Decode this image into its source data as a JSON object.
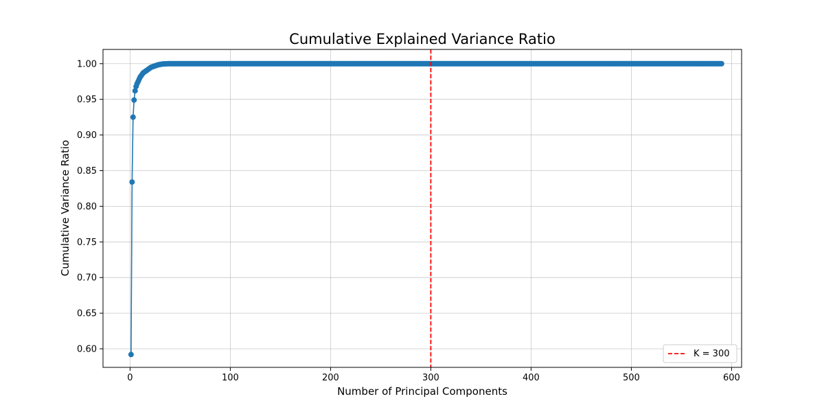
{
  "chart_data": {
    "type": "line",
    "title": "Cumulative Explained Variance Ratio",
    "xlabel": "Number of Principal Components",
    "ylabel": "Cumulative Variance Ratio",
    "xlim": [
      -27,
      610
    ],
    "ylim": [
      0.574,
      1.02
    ],
    "x_ticks": [
      0,
      100,
      200,
      300,
      400,
      500,
      600
    ],
    "x_tick_labels": [
      "0",
      "100",
      "200",
      "300",
      "400",
      "500",
      "600"
    ],
    "y_ticks": [
      0.6,
      0.65,
      0.7,
      0.75,
      0.8,
      0.85,
      0.9,
      0.95,
      1.0
    ],
    "y_tick_labels": [
      "0.60",
      "0.65",
      "0.70",
      "0.75",
      "0.80",
      "0.85",
      "0.90",
      "0.95",
      "1.00"
    ],
    "grid": true,
    "series": [
      {
        "color": "#1f77b4",
        "marker": "circle",
        "x_start": 1,
        "x_end": 590,
        "leading_values": [
          0.592,
          0.834,
          0.925,
          0.949,
          0.962,
          0.968,
          0.972,
          0.975,
          0.978,
          0.981,
          0.983,
          0.985,
          0.987,
          0.988,
          0.989,
          0.99,
          0.991,
          0.992,
          0.993,
          0.994,
          0.995,
          0.9955,
          0.996,
          0.9965,
          0.997,
          0.9975,
          0.998,
          0.9984,
          0.9987,
          0.999,
          0.9992,
          0.9994,
          0.9996,
          0.9997,
          0.9998,
          0.9999,
          0.99993,
          0.99996,
          0.99998,
          0.99999
        ],
        "plateau_value": 1.0
      }
    ],
    "reference_line": {
      "type": "vertical",
      "x": 300,
      "color": "#ff0000",
      "style": "dashed",
      "label": "K = 300"
    },
    "legend": {
      "placement": "bottom-right",
      "entries": [
        "K = 300"
      ]
    }
  }
}
